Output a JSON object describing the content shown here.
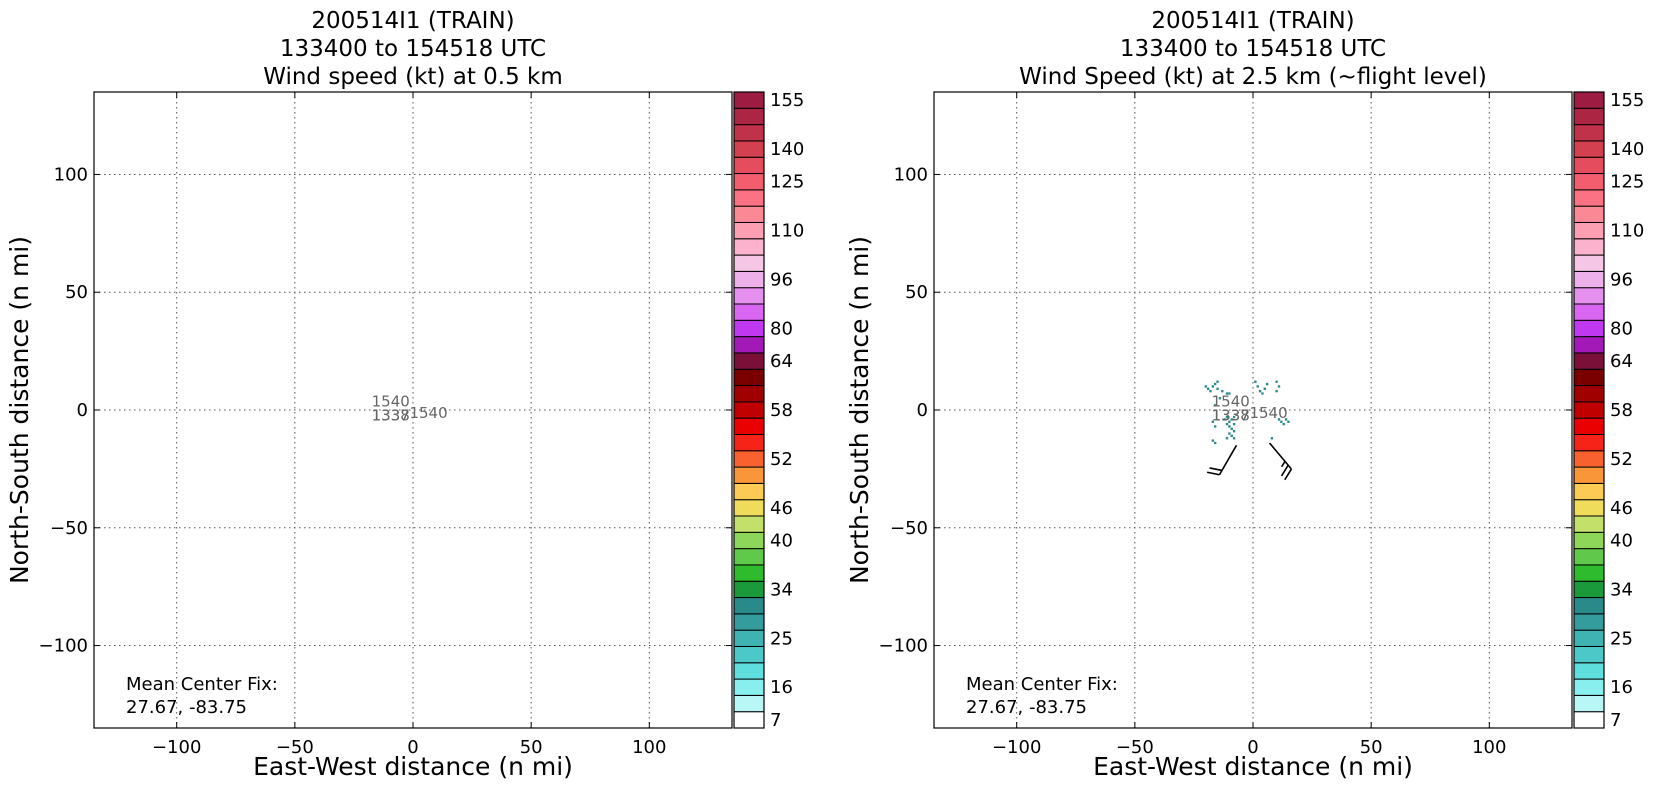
{
  "chart_data": [
    {
      "type": "heatmap",
      "title_lines": [
        "200514I1 (TRAIN)",
        "133400 to 154518 UTC",
        "Wind speed (kt) at 0.5 km"
      ],
      "xlabel": "East-West distance (n mi)",
      "ylabel": "North-South distance (n mi)",
      "xlim": [
        -135,
        135
      ],
      "ylim": [
        -135,
        135
      ],
      "xticks": [
        -100,
        -50,
        0,
        50,
        100
      ],
      "yticks": [
        -100,
        -50,
        0,
        50,
        100
      ],
      "grid": true,
      "annotation_lines": [
        "Mean Center Fix:",
        "27.67, -83.75"
      ],
      "track_labels": [
        {
          "text": "1540",
          "x": -17.5,
          "y": 1.5
        },
        {
          "text": "1338",
          "x": -17.5,
          "y": -4.5
        },
        {
          "text": "1337",
          "x": -17.5,
          "y": -4.5
        },
        {
          "text": "1540",
          "x": -1.5,
          "y": -3.5
        }
      ],
      "wind_cells": [],
      "barbs": []
    },
    {
      "type": "heatmap",
      "title_lines": [
        "200514I1 (TRAIN)",
        "133400 to 154518 UTC",
        "Wind Speed (kt) at 2.5 km (~flight level)"
      ],
      "xlabel": "East-West distance (n mi)",
      "ylabel": "North-South distance (n mi)",
      "xlim": [
        -135,
        135
      ],
      "ylim": [
        -135,
        135
      ],
      "xticks": [
        -100,
        -50,
        0,
        50,
        100
      ],
      "yticks": [
        -100,
        -50,
        0,
        50,
        100
      ],
      "grid": true,
      "annotation_lines": [
        "Mean Center Fix:",
        "27.67, -83.75"
      ],
      "track_labels": [
        {
          "text": "1540",
          "x": -17.5,
          "y": 1.5
        },
        {
          "text": "1338",
          "x": -17.5,
          "y": -4.5
        },
        {
          "text": "1337",
          "x": -17.5,
          "y": -4.5
        },
        {
          "text": "1540",
          "x": -1.5,
          "y": -3.5
        }
      ],
      "wind_cells": [
        {
          "x": -20,
          "y": 10,
          "v": 28
        },
        {
          "x": -19,
          "y": 9,
          "v": 28
        },
        {
          "x": -18,
          "y": 8,
          "v": 28
        },
        {
          "x": -17,
          "y": 10,
          "v": 28
        },
        {
          "x": -16,
          "y": 11,
          "v": 28
        },
        {
          "x": -15,
          "y": 12,
          "v": 28
        },
        {
          "x": -15,
          "y": 9,
          "v": 28
        },
        {
          "x": -13,
          "y": 8,
          "v": 28
        },
        {
          "x": -11,
          "y": 7,
          "v": 28
        },
        {
          "x": -10,
          "y": 7,
          "v": 28
        },
        {
          "x": -14,
          "y": 5,
          "v": 28
        },
        {
          "x": -16,
          "y": 2,
          "v": 28
        },
        {
          "x": -17,
          "y": -5,
          "v": 28
        },
        {
          "x": -16,
          "y": -7,
          "v": 28
        },
        {
          "x": -17,
          "y": -13,
          "v": 28
        },
        {
          "x": -16,
          "y": -14,
          "v": 28
        },
        {
          "x": -12,
          "y": -4,
          "v": 28
        },
        {
          "x": -11,
          "y": -3,
          "v": 28
        },
        {
          "x": -10,
          "y": -5,
          "v": 28
        },
        {
          "x": -9,
          "y": -4,
          "v": 28
        },
        {
          "x": -8,
          "y": -3,
          "v": 28
        },
        {
          "x": -11,
          "y": -6,
          "v": 28
        },
        {
          "x": -10,
          "y": -7,
          "v": 28
        },
        {
          "x": -9,
          "y": -8,
          "v": 28
        },
        {
          "x": -8,
          "y": -9,
          "v": 28
        },
        {
          "x": -10,
          "y": -10,
          "v": 28
        },
        {
          "x": -9,
          "y": -11,
          "v": 28
        },
        {
          "x": -8,
          "y": -12,
          "v": 28
        },
        {
          "x": -11,
          "y": -12,
          "v": 28
        },
        {
          "x": -8,
          "y": -6,
          "v": 28
        },
        {
          "x": -7,
          "y": -2,
          "v": 28
        },
        {
          "x": 1,
          "y": 12,
          "v": 28
        },
        {
          "x": 2,
          "y": 10,
          "v": 28
        },
        {
          "x": 3,
          "y": 8,
          "v": 28
        },
        {
          "x": 4,
          "y": 7,
          "v": 28
        },
        {
          "x": 5,
          "y": 9,
          "v": 28
        },
        {
          "x": 6,
          "y": 11,
          "v": 28
        },
        {
          "x": 10,
          "y": 12,
          "v": 28
        },
        {
          "x": 11,
          "y": 10,
          "v": 28
        },
        {
          "x": 10,
          "y": 8,
          "v": 28
        },
        {
          "x": 11,
          "y": -4,
          "v": 28
        },
        {
          "x": 12,
          "y": -5,
          "v": 28
        },
        {
          "x": 13,
          "y": -6,
          "v": 28
        },
        {
          "x": 14,
          "y": -4,
          "v": 28
        },
        {
          "x": 15,
          "y": -5,
          "v": 28
        },
        {
          "x": 8,
          "y": -12,
          "v": 28
        }
      ],
      "barbs": [
        {
          "x": -7,
          "y": -15,
          "dir": 30,
          "speed_kt": 20
        },
        {
          "x": 7,
          "y": -14,
          "dir": 320,
          "speed_kt": 25
        }
      ]
    }
  ],
  "colorbar": {
    "tick_labels": [
      "155",
      "140",
      "125",
      "110",
      "96",
      "80",
      "64",
      "58",
      "52",
      "46",
      "40",
      "34",
      "25",
      "16",
      "7"
    ],
    "colors": [
      "#ffffff",
      "#b9f6f6",
      "#88eeee",
      "#5fdede",
      "#4cc8c8",
      "#3fb2b2",
      "#349c9c",
      "#2a8a8a",
      "#1a9a3a",
      "#2ebb2e",
      "#60c84a",
      "#8ed65a",
      "#c2e06a",
      "#eedc5a",
      "#fbcb55",
      "#fa963a",
      "#f9622e",
      "#f62418",
      "#ea0000",
      "#c00000",
      "#a00000",
      "#7a0000",
      "#7a1038",
      "#a219b8",
      "#c038f0",
      "#d866f0",
      "#e590ee",
      "#eeb0ea",
      "#f6c6e6",
      "#fbb2cc",
      "#fc9fb3",
      "#fb8895",
      "#fa7283",
      "#f35e6e",
      "#e54c5e",
      "#d3404f",
      "#c03249",
      "#ac2644",
      "#9c1c42"
    ]
  }
}
